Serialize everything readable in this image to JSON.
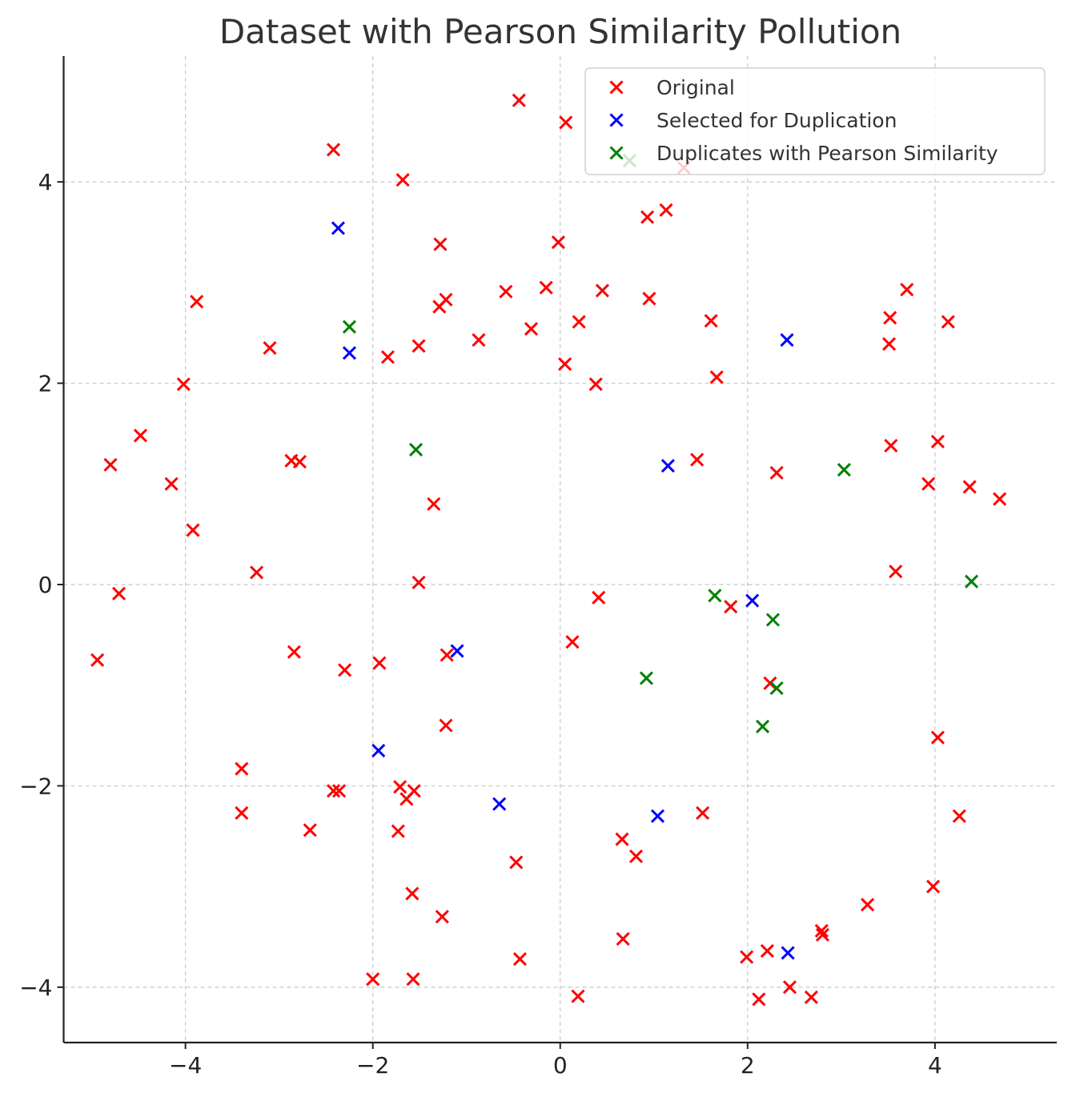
{
  "chart_data": {
    "type": "scatter",
    "title": "Dataset with Pearson Similarity Pollution",
    "xlabel": "",
    "ylabel": "",
    "xlim": [
      -5.3,
      5.3
    ],
    "ylim": [
      -4.55,
      5.25
    ],
    "xticks": [
      -4,
      -2,
      0,
      2,
      4
    ],
    "yticks": [
      -4,
      -2,
      0,
      2,
      4
    ],
    "xtick_labels": [
      "−4",
      "−2",
      "0",
      "2",
      "4"
    ],
    "ytick_labels": [
      "−4",
      "−2",
      "0",
      "2",
      "4"
    ],
    "grid": true,
    "legend_position": "top-right",
    "marker": "x",
    "series": [
      {
        "name": "Original",
        "color": "#ff0000",
        "points": [
          [
            -0.44,
            4.81
          ],
          [
            0.06,
            4.59
          ],
          [
            -2.42,
            4.32
          ],
          [
            -1.68,
            4.02
          ],
          [
            1.32,
            4.14
          ],
          [
            0.93,
            3.65
          ],
          [
            1.13,
            3.72
          ],
          [
            -0.02,
            3.4
          ],
          [
            -1.28,
            3.38
          ],
          [
            -3.88,
            2.81
          ],
          [
            -1.22,
            2.83
          ],
          [
            -1.29,
            2.76
          ],
          [
            -0.58,
            2.91
          ],
          [
            -0.15,
            2.95
          ],
          [
            0.45,
            2.92
          ],
          [
            0.95,
            2.84
          ],
          [
            -3.1,
            2.35
          ],
          [
            -1.51,
            2.37
          ],
          [
            -0.87,
            2.43
          ],
          [
            -0.31,
            2.54
          ],
          [
            0.2,
            2.61
          ],
          [
            1.61,
            2.62
          ],
          [
            -1.84,
            2.26
          ],
          [
            0.05,
            2.19
          ],
          [
            -4.02,
            1.99
          ],
          [
            0.38,
            1.99
          ],
          [
            1.67,
            2.06
          ],
          [
            3.7,
            2.93
          ],
          [
            3.52,
            2.65
          ],
          [
            4.14,
            2.61
          ],
          [
            3.51,
            2.39
          ],
          [
            -4.48,
            1.48
          ],
          [
            -4.8,
            1.19
          ],
          [
            -2.87,
            1.23
          ],
          [
            -2.78,
            1.22
          ],
          [
            -4.15,
            1.0
          ],
          [
            -1.35,
            0.8
          ],
          [
            -3.92,
            0.54
          ],
          [
            1.46,
            1.24
          ],
          [
            2.31,
            1.11
          ],
          [
            3.53,
            1.38
          ],
          [
            4.03,
            1.42
          ],
          [
            3.93,
            1.0
          ],
          [
            4.37,
            0.97
          ],
          [
            4.69,
            0.85
          ],
          [
            3.58,
            0.13
          ],
          [
            -3.24,
            0.12
          ],
          [
            -1.51,
            0.02
          ],
          [
            -4.71,
            -0.09
          ],
          [
            0.41,
            -0.13
          ],
          [
            1.82,
            -0.22
          ],
          [
            -4.94,
            -0.75
          ],
          [
            -2.84,
            -0.67
          ],
          [
            -2.3,
            -0.85
          ],
          [
            -1.93,
            -0.78
          ],
          [
            -1.21,
            -0.7
          ],
          [
            0.13,
            -0.57
          ],
          [
            2.24,
            -0.98
          ],
          [
            -1.22,
            -1.4
          ],
          [
            4.03,
            -1.52
          ],
          [
            -3.4,
            -1.83
          ],
          [
            -3.4,
            -2.27
          ],
          [
            -2.67,
            -2.44
          ],
          [
            -2.42,
            -2.05
          ],
          [
            -2.36,
            -2.05
          ],
          [
            -1.71,
            -2.01
          ],
          [
            -1.64,
            -2.13
          ],
          [
            -1.56,
            -2.05
          ],
          [
            -1.73,
            -2.45
          ],
          [
            0.66,
            -2.53
          ],
          [
            0.81,
            -2.7
          ],
          [
            1.52,
            -2.27
          ],
          [
            4.26,
            -2.3
          ],
          [
            -0.47,
            -2.76
          ],
          [
            -1.58,
            -3.07
          ],
          [
            -1.26,
            -3.3
          ],
          [
            0.67,
            -3.52
          ],
          [
            -0.43,
            -3.72
          ],
          [
            -2.0,
            -3.92
          ],
          [
            -1.57,
            -3.92
          ],
          [
            0.19,
            -4.09
          ],
          [
            1.99,
            -3.7
          ],
          [
            2.21,
            -3.64
          ],
          [
            2.45,
            -4.0
          ],
          [
            2.12,
            -4.12
          ],
          [
            2.68,
            -4.1
          ],
          [
            2.79,
            -3.44
          ],
          [
            2.8,
            -3.48
          ],
          [
            3.28,
            -3.18
          ],
          [
            3.98,
            -3.0
          ]
        ]
      },
      {
        "name": "Selected for Duplication",
        "color": "#0000ff",
        "points": [
          [
            -2.37,
            3.54
          ],
          [
            -2.25,
            2.3
          ],
          [
            2.42,
            2.43
          ],
          [
            1.15,
            1.18
          ],
          [
            -1.1,
            -0.66
          ],
          [
            2.05,
            -0.16
          ],
          [
            -1.94,
            -1.65
          ],
          [
            -0.65,
            -2.18
          ],
          [
            1.04,
            -2.3
          ],
          [
            2.43,
            -3.66
          ]
        ]
      },
      {
        "name": "Duplicates with Pearson Similarity",
        "color": "#008000",
        "points": [
          [
            0.74,
            4.21
          ],
          [
            -2.25,
            2.56
          ],
          [
            -1.54,
            1.34
          ],
          [
            3.03,
            1.14
          ],
          [
            4.39,
            0.03
          ],
          [
            1.65,
            -0.11
          ],
          [
            2.27,
            -0.35
          ],
          [
            0.92,
            -0.93
          ],
          [
            2.31,
            -1.03
          ],
          [
            2.16,
            -1.41
          ]
        ]
      }
    ]
  },
  "legend": {
    "items": [
      {
        "label": "Original",
        "color": "#ff0000"
      },
      {
        "label": "Selected for Duplication",
        "color": "#0000ff"
      },
      {
        "label": "Duplicates with Pearson Similarity",
        "color": "#008000"
      }
    ]
  }
}
